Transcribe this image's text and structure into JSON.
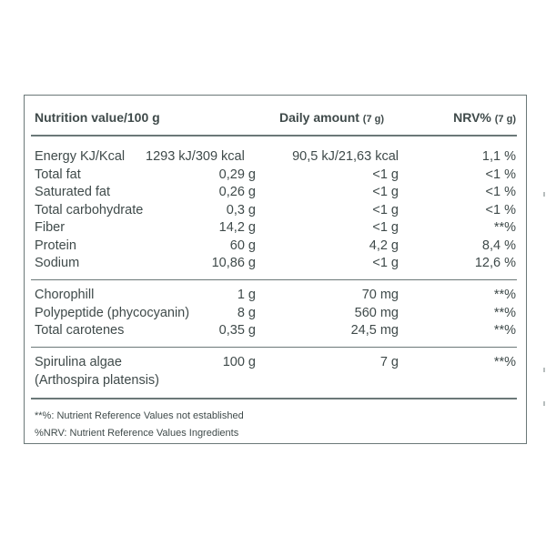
{
  "header": {
    "col1": "Nutrition value/100 g",
    "col3": "Daily amount",
    "col3_unit": "(7 g)",
    "col4": "NRV%",
    "col4_unit": "(7 g)"
  },
  "group1": [
    {
      "name": "Energy KJ/Kcal",
      "per100": "1293 kJ/309 kcal",
      "daily": "90,5 kJ/21,63 kcal",
      "nrv": "1,1 %"
    },
    {
      "name": "Total fat",
      "per100": "0,29 g",
      "daily": "<1 g",
      "nrv": "<1 %"
    },
    {
      "name": "Saturated fat",
      "per100": "0,26 g",
      "daily": "<1 g",
      "nrv": "<1 %"
    },
    {
      "name": "Total carbohydrate",
      "per100": "0,3 g",
      "daily": "<1 g",
      "nrv": "<1 %"
    },
    {
      "name": "Fiber",
      "per100": "14,2 g",
      "daily": "<1 g",
      "nrv": "**%"
    },
    {
      "name": "Protein",
      "per100": "60 g",
      "daily": "4,2 g",
      "nrv": "8,4 %"
    },
    {
      "name": "Sodium",
      "per100": "10,86 g",
      "daily": "<1 g",
      "nrv": "12,6 %"
    }
  ],
  "group2": [
    {
      "name": "Chorophill",
      "per100": "1 g",
      "daily": "70 mg",
      "nrv": "**%"
    },
    {
      "name": "Polypeptide (phycocyanin)",
      "per100": "8 g",
      "daily": "560 mg",
      "nrv": "**%"
    },
    {
      "name": "Total carotenes",
      "per100": "0,35 g",
      "daily": "24,5 mg",
      "nrv": "**%"
    }
  ],
  "group3": {
    "name_line1": "Spirulina algae",
    "name_line2": "(Arthospira platensis)",
    "per100": "100 g",
    "daily": "7 g",
    "nrv": "**%"
  },
  "footnotes": [
    "**%: Nutrient Reference Values not established",
    "%NRV: Nutrient Reference Values Ingredients"
  ]
}
